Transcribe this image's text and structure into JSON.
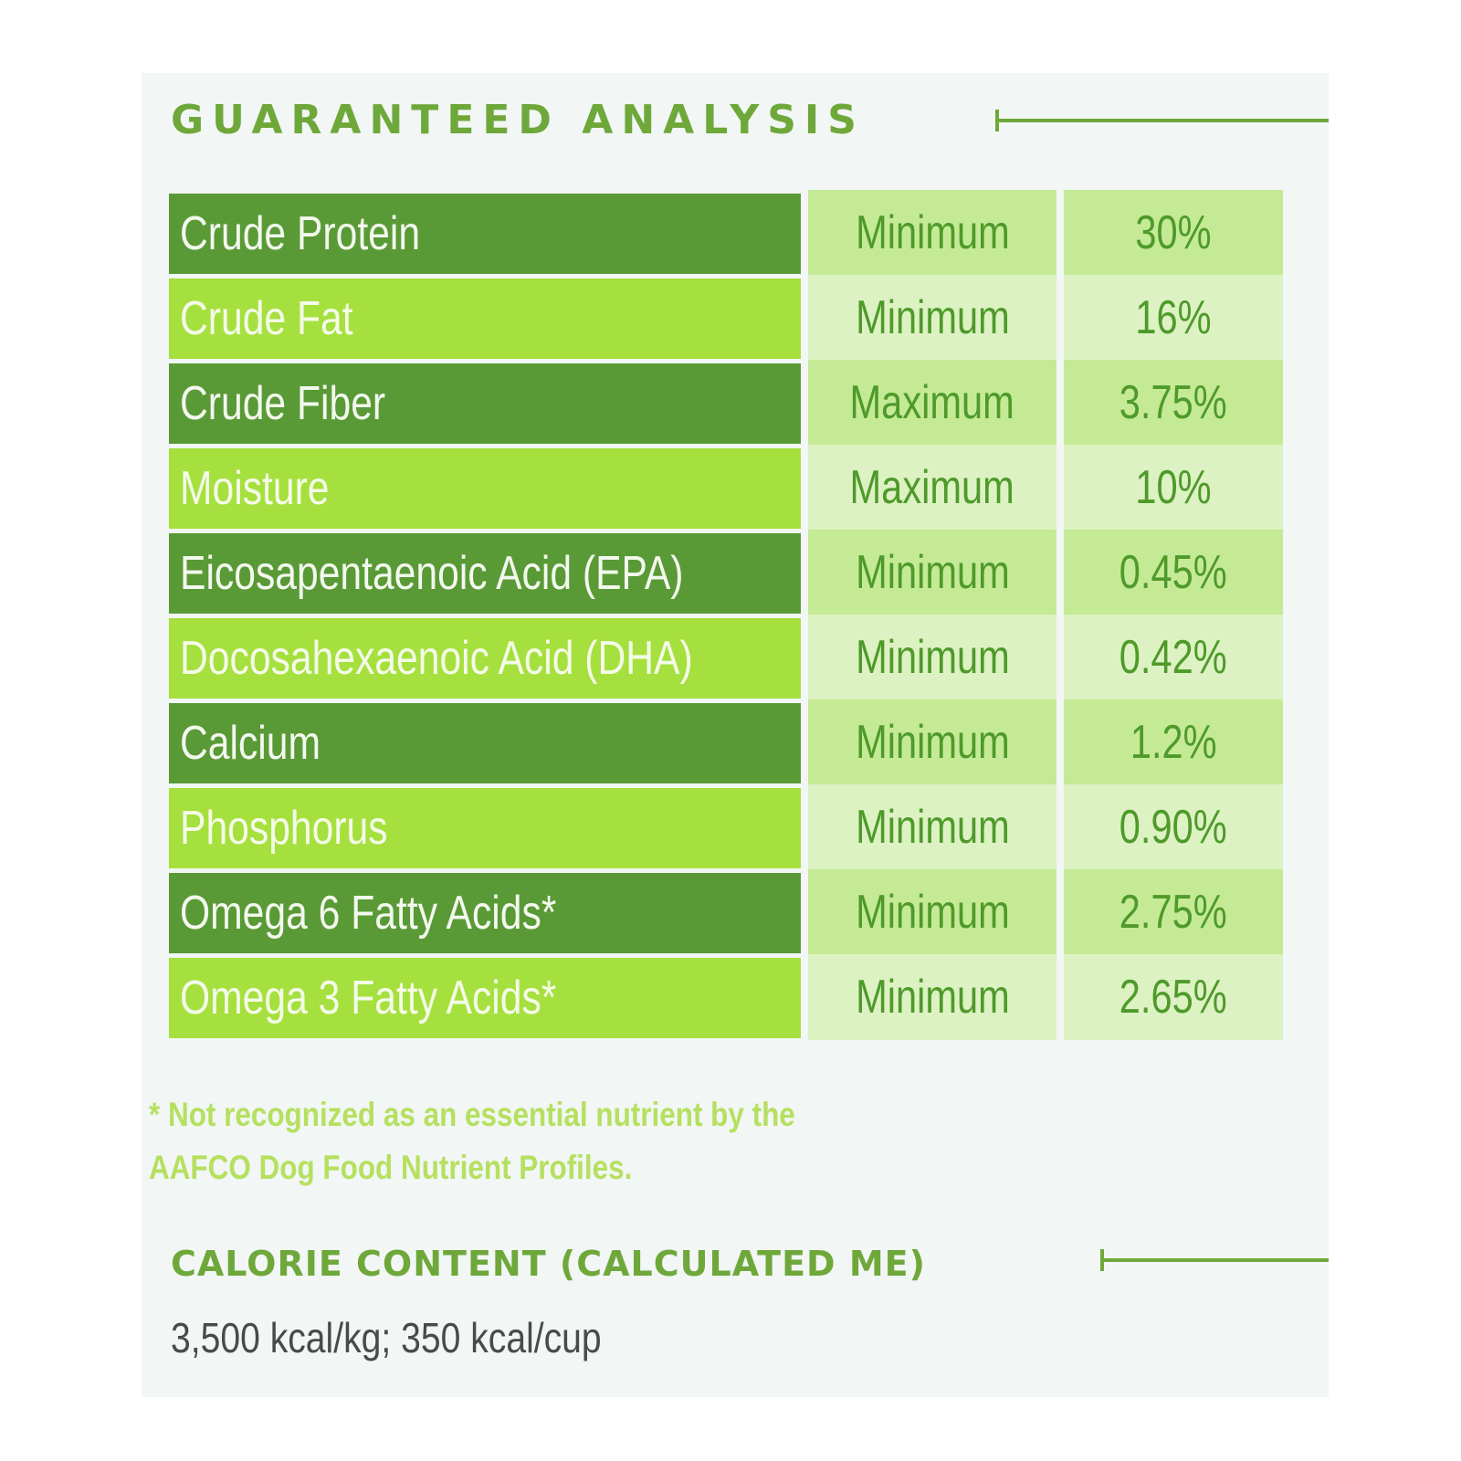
{
  "title": "GUARANTEED ANALYSIS",
  "colors": {
    "accent": "#6fa83a",
    "row_dark": "#5a9a36",
    "row_light": "#a6e03e",
    "cell_dark": "#c5ea95",
    "cell_light": "#ddf2c3",
    "value_text": "#4e9a2a"
  },
  "rows": [
    {
      "name": "Crude Protein",
      "qualifier": "Minimum",
      "value": "30%"
    },
    {
      "name": "Crude Fat",
      "qualifier": "Minimum",
      "value": "16%"
    },
    {
      "name": "Crude Fiber",
      "qualifier": "Maximum",
      "value": "3.75%"
    },
    {
      "name": "Moisture",
      "qualifier": "Maximum",
      "value": "10%"
    },
    {
      "name": "Eicosapentaenoic Acid (EPA)",
      "qualifier": "Minimum",
      "value": "0.45%"
    },
    {
      "name": "Docosahexaenoic Acid (DHA)",
      "qualifier": "Minimum",
      "value": "0.42%"
    },
    {
      "name": "Calcium",
      "qualifier": "Minimum",
      "value": "1.2%"
    },
    {
      "name": "Phosphorus",
      "qualifier": "Minimum",
      "value": "0.90%"
    },
    {
      "name": "Omega 6 Fatty Acids*",
      "qualifier": "Minimum",
      "value": "2.75%"
    },
    {
      "name": "Omega 3 Fatty Acids*",
      "qualifier": "Minimum",
      "value": "2.65%"
    }
  ],
  "footnote": {
    "line1": "* Not recognized as an essential nutrient by the",
    "line2": "AAFCO Dog Food Nutrient Profiles."
  },
  "calorie_heading": "CALORIE CONTENT (CALCULATED ME)",
  "calories": "3,500 kcal/kg; 350 kcal/cup"
}
